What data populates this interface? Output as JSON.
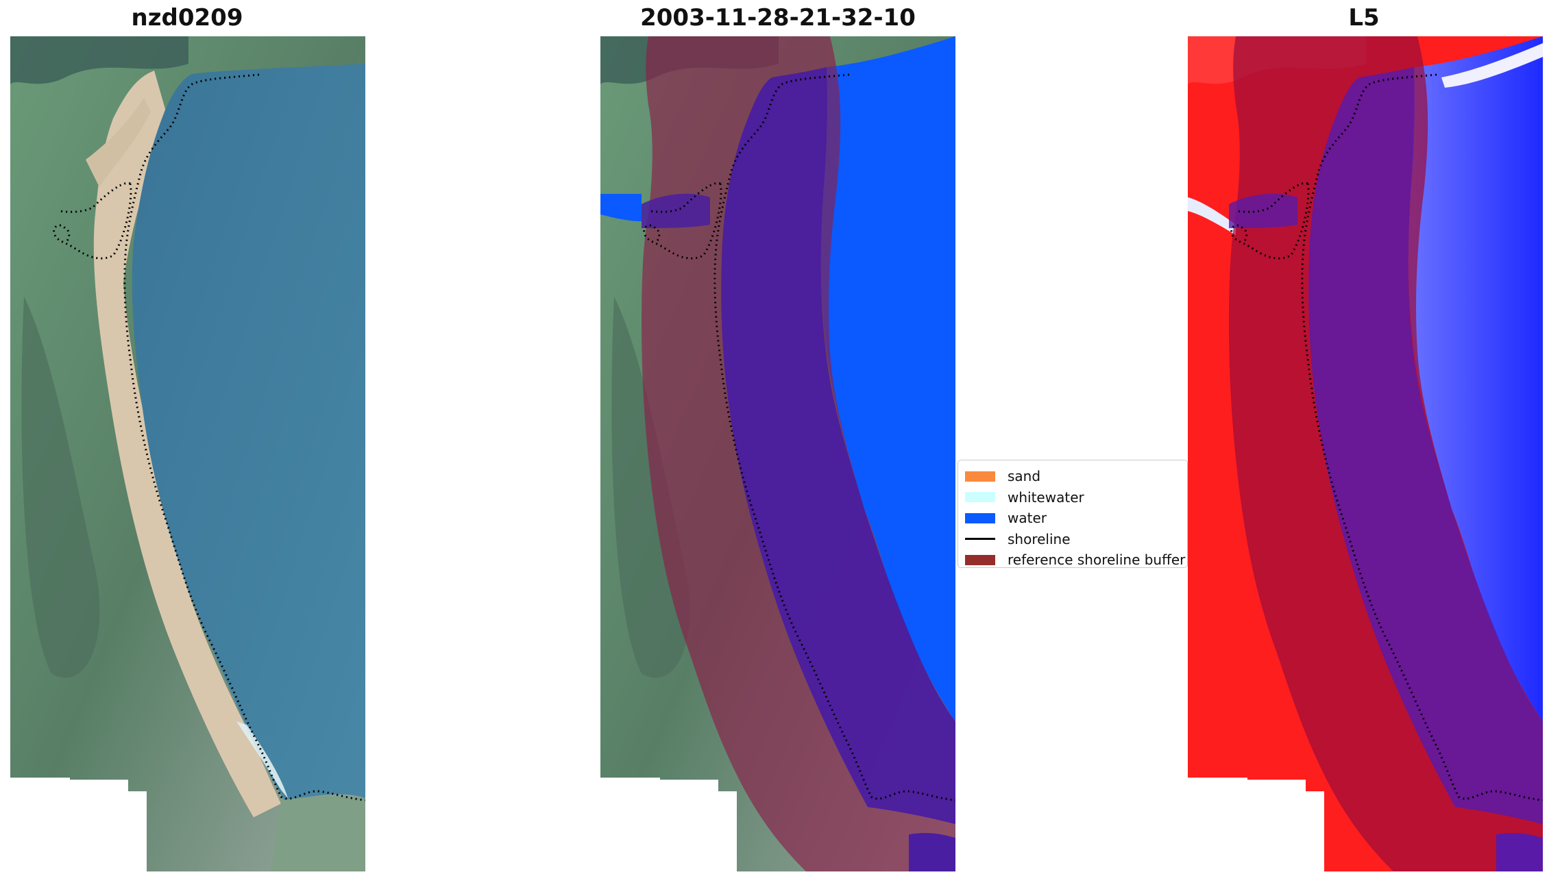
{
  "panels": [
    {
      "title": "nzd0209"
    },
    {
      "title": "2003-11-28-21-32-10"
    },
    {
      "title": "L5"
    }
  ],
  "legend": {
    "items": [
      {
        "label": "sand",
        "color": "#f98a3d"
      },
      {
        "label": "whitewater",
        "color": "#ccffff"
      },
      {
        "label": "water",
        "color": "#0a5aff"
      },
      {
        "label": "shoreline",
        "color": "#000000"
      },
      {
        "label": "reference shoreline buffer",
        "color": "#952d2d"
      }
    ]
  },
  "colors": {
    "sea": "#3e7b9a",
    "beach_sand": "#d8c7aa",
    "vegetation": "#5c8b6a",
    "buffer_overlay": "#8a1e4a",
    "classified_water": "#0a5aff",
    "l5_land": "#ff1e1e",
    "l5_water": "#1e2aff",
    "shoreline_dots": "#000000"
  }
}
